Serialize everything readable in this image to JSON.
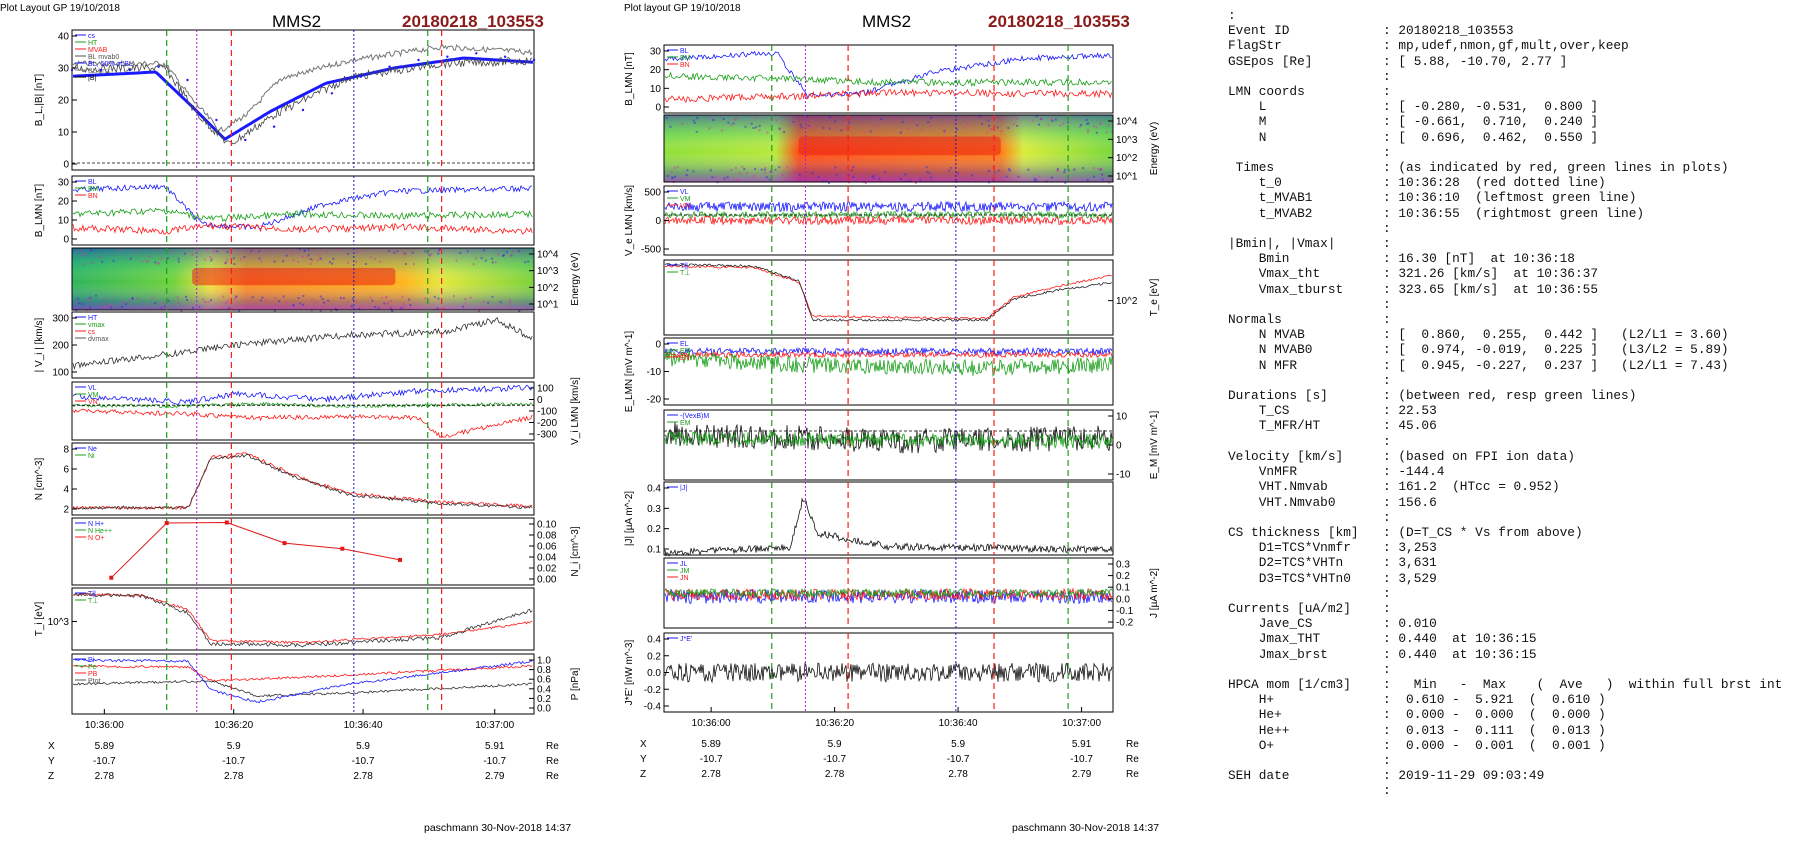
{
  "left": {
    "header": "Plot Layout GP 19/10/2018",
    "title": "MMS2",
    "event_title": "20180218_103553",
    "footer": "paschmann 30-Nov-2018 14:37",
    "time_ticks": [
      "10:36:00",
      "10:36:20",
      "10:36:40",
      "10:37:00"
    ],
    "ephemeris": [
      {
        "label": "X",
        "values": [
          "5.89",
          "5.9",
          "5.9",
          "5.91"
        ],
        "unit": "Re"
      },
      {
        "label": "Y",
        "values": [
          "-10.7",
          "-10.7",
          "-10.7",
          "-10.7"
        ],
        "unit": "Re"
      },
      {
        "label": "Z",
        "values": [
          "2.78",
          "2.78",
          "2.78",
          "2.79"
        ],
        "unit": "Re"
      }
    ],
    "panels": [
      {
        "ylabel": "B_L,|B| [nT]",
        "ticks": [
          "40",
          "30",
          "20",
          "10",
          "0"
        ],
        "legend": [
          "cs",
          "HT",
          "MVAB",
          "BL mvab0",
          "BL, 50% of BL",
          "BL brst",
          "|B|"
        ]
      },
      {
        "ylabel": "B_LMN [nT]",
        "ticks": [
          "30",
          "20",
          "10",
          "0"
        ],
        "legend": [
          "BL",
          "BM",
          "BN"
        ]
      },
      {
        "ylabel_right": "Energy (eV)",
        "ticks_right": [
          "10^4",
          "10^3",
          "10^2",
          "10^1"
        ]
      },
      {
        "ylabel": "| V_i | [km/s]",
        "ticks": [
          "300",
          "200",
          "100"
        ],
        "legend": [
          "HT",
          "vmax",
          "cs",
          "dvmax"
        ]
      },
      {
        "ylabel_right": "V_i LMN [km/s]",
        "ticks_right": [
          "100",
          "0",
          "-100",
          "-200",
          "-300"
        ],
        "legend": [
          "VL",
          "VM",
          "VN"
        ]
      },
      {
        "ylabel": "N [cm^-3]",
        "ticks": [
          "8",
          "6",
          "4",
          "2"
        ],
        "legend": [
          "Ne",
          "Ni"
        ]
      },
      {
        "ylabel_right": "N_i [cm^-3]",
        "ticks_right": [
          "0.10",
          "0.08",
          "0.06",
          "0.04",
          "0.02",
          "0.00"
        ],
        "legend": [
          "N H+",
          "N He++",
          "N O+"
        ]
      },
      {
        "ylabel": "T_i [eV]",
        "ticks": [
          "10^3"
        ],
        "legend": [
          "T||",
          "T⊥"
        ]
      },
      {
        "ylabel_right": "P [nPa]",
        "ticks_right": [
          "1.0",
          "0.8",
          "0.6",
          "0.4",
          "0.2",
          "0.0"
        ],
        "legend": [
          "Pi",
          "Pe",
          "PB",
          "Ptot"
        ]
      }
    ]
  },
  "right": {
    "header": "Plot layout GP 19/10/2018",
    "title": "MMS2",
    "event_title": "20180218_103553",
    "footer": "paschmann 30-Nov-2018 14:37",
    "time_ticks": [
      "10:36:00",
      "10:36:20",
      "10:36:40",
      "10:37:00"
    ],
    "ephemeris": [
      {
        "label": "X",
        "values": [
          "5.89",
          "5.9",
          "5.9",
          "5.91"
        ],
        "unit": "Re"
      },
      {
        "label": "Y",
        "values": [
          "-10.7",
          "-10.7",
          "-10.7",
          "-10.7"
        ],
        "unit": "Re"
      },
      {
        "label": "Z",
        "values": [
          "2.78",
          "2.78",
          "2.78",
          "2.79"
        ],
        "unit": "Re"
      }
    ],
    "panels": [
      {
        "ylabel": "B_LMN [nT]",
        "ticks": [
          "30",
          "20",
          "10",
          "0"
        ],
        "legend": [
          "BL",
          "BM",
          "BN"
        ]
      },
      {
        "ylabel_right": "Energy (eV)",
        "ticks_right": [
          "10^4",
          "10^3",
          "10^2",
          "10^1"
        ]
      },
      {
        "ylabel": "V_e LMN [km/s]",
        "ticks": [
          "500",
          "0",
          "-500"
        ],
        "legend": [
          "VL",
          "VM",
          "VN"
        ]
      },
      {
        "ylabel_right": "T_e [eV]",
        "ticks_right": [
          "10^2"
        ],
        "legend": [
          "T||",
          "T⊥"
        ]
      },
      {
        "ylabel": "E_LMN [mV m^-1]",
        "ticks": [
          "0",
          "-10",
          "-20"
        ],
        "legend": [
          "EL",
          "EM",
          "EN"
        ]
      },
      {
        "ylabel_right": "E_M [mV m^-1]",
        "ticks_right": [
          "10",
          "0",
          "-10"
        ],
        "legend": [
          "-(VexB)M",
          "EM"
        ]
      },
      {
        "ylabel": "|J| [µA m^-2]",
        "ticks": [
          "0.4",
          "0.3",
          "0.2",
          "0.1"
        ],
        "legend": [
          "|J|"
        ]
      },
      {
        "ylabel_right": "J [µA m^-2]",
        "ticks_right": [
          "0.3",
          "0.2",
          "0.1",
          "0.0",
          "-0.1",
          "-0.2"
        ],
        "legend": [
          "JL",
          "JM",
          "JN"
        ]
      },
      {
        "ylabel": "J*E' [nW m^-3]",
        "ticks": [
          "0.4",
          "0.2",
          "0.0",
          "-0.2",
          "-0.4"
        ],
        "legend": [
          "J*E'"
        ]
      }
    ]
  },
  "info": {
    "lines": [
      [
        ":",
        ""
      ],
      [
        "Event ID",
        ": 20180218_103553"
      ],
      [
        "FlagStr",
        ": mp,udef,nmon,gf,mult,over,keep"
      ],
      [
        "GSEpos [Re]",
        ": [ 5.88, -10.70, 2.77 ]"
      ],
      [
        "",
        ":"
      ],
      [
        "LMN coords",
        ":"
      ],
      [
        "    L",
        ": [ -0.280, -0.531,  0.800 ]"
      ],
      [
        "    M",
        ": [ -0.661,  0.710,  0.240 ]"
      ],
      [
        "    N",
        ": [  0.696,  0.462,  0.550 ]"
      ],
      [
        "",
        ":"
      ],
      [
        " Times",
        ": (as indicated by red, green lines in plots)"
      ],
      [
        "    t_0",
        ": 10:36:28  (red dotted line)"
      ],
      [
        "    t_MVAB1",
        ": 10:36:10  (leftmost green line)"
      ],
      [
        "    t_MVAB2",
        ": 10:36:55  (rightmost green line)"
      ],
      [
        "",
        ":"
      ],
      [
        "|Bmin|, |Vmax|",
        ":"
      ],
      [
        "    Bmin",
        ": 16.30 [nT]  at 10:36:18"
      ],
      [
        "    Vmax_tht",
        ": 321.26 [km/s]  at 10:36:37"
      ],
      [
        "    Vmax_tburst",
        ": 323.65 [km/s]  at 10:36:55"
      ],
      [
        "",
        ":"
      ],
      [
        "Normals",
        ":"
      ],
      [
        "    N MVAB",
        ": [  0.860,  0.255,  0.442 ]   (L2/L1 = 3.60)"
      ],
      [
        "    N MVAB0",
        ": [  0.974, -0.019,  0.225 ]   (L3/L2 = 5.89)"
      ],
      [
        "    N MFR",
        ": [  0.945, -0.227,  0.237 ]   (L2/L1 = 7.43)"
      ],
      [
        "",
        ":"
      ],
      [
        "Durations [s]",
        ": (between red, resp green lines)"
      ],
      [
        "    T_CS",
        ": 22.53"
      ],
      [
        "    T_MFR/HT",
        ": 45.06"
      ],
      [
        "",
        ":"
      ],
      [
        "Velocity [km/s]",
        ": (based on FPI ion data)"
      ],
      [
        "    VnMFR",
        ": -144.4"
      ],
      [
        "    VHT.Nmvab",
        ": 161.2  (HTcc = 0.952)"
      ],
      [
        "    VHT.Nmvab0",
        ": 156.6"
      ],
      [
        "",
        ":"
      ],
      [
        "CS thickness [km]",
        ": (D=T_CS * Vs from above)"
      ],
      [
        "    D1=TCS*Vnmfr",
        ": 3,253"
      ],
      [
        "    D2=TCS*VHTn",
        ": 3,631"
      ],
      [
        "    D3=TCS*VHTn0",
        ": 3,529"
      ],
      [
        "",
        ":"
      ],
      [
        "Currents [uA/m2]",
        ":"
      ],
      [
        "    Jave_CS",
        ": 0.010"
      ],
      [
        "    Jmax_THT",
        ": 0.440  at 10:36:15"
      ],
      [
        "    Jmax_brst",
        ": 0.440  at 10:36:15"
      ],
      [
        "",
        ":"
      ],
      [
        "HPCA mom [1/cm3]",
        ":   Min   -  Max    (  Ave   )  within full brst int"
      ],
      [
        "    H+",
        ":  0.610 -  5.921  (  0.610 )"
      ],
      [
        "    He+",
        ":  0.000 -  0.000  (  0.000 )"
      ],
      [
        "    He++",
        ":  0.013 -  0.111  (  0.013 )"
      ],
      [
        "    O+",
        ":  0.000 -  0.001  (  0.001 )"
      ],
      [
        "",
        ":"
      ],
      [
        "SEH date",
        ": 2019-11-29 09:03:49"
      ],
      [
        "",
        ":"
      ]
    ]
  },
  "chart_data": [
    {
      "type": "line",
      "title": "MMS2 20180218_103553",
      "xlabel": "",
      "ylabel": "B_L,|B| [nT]",
      "x_time": [
        "10:35:48",
        "10:35:55",
        "10:36:00",
        "10:36:05",
        "10:36:10",
        "10:36:14",
        "10:36:18",
        "10:36:22",
        "10:36:26",
        "10:36:30",
        "10:36:35",
        "10:36:40",
        "10:36:45",
        "10:36:50",
        "10:36:55",
        "10:37:00",
        "10:37:03"
      ],
      "series": [
        {
          "name": "BL brst",
          "values": [
            30,
            30,
            30,
            31,
            27,
            15,
            9,
            13,
            18,
            23,
            28,
            31,
            33,
            34,
            35,
            34,
            33
          ]
        }
      ],
      "ylim": [
        0,
        42
      ]
    },
    {
      "type": "scatter",
      "title": "",
      "xlabel": "",
      "ylabel": "N_i [cm^-3]",
      "x_time": [
        "10:35:55",
        "10:36:10",
        "10:36:20",
        "10:36:30",
        "10:36:40",
        "10:36:50"
      ],
      "series": [
        {
          "name": "N He++",
          "values": [
            0.013,
            0.111,
            0.112,
            0.075,
            0.065,
            0.045
          ]
        }
      ],
      "ylim": [
        0,
        0.12
      ]
    }
  ]
}
